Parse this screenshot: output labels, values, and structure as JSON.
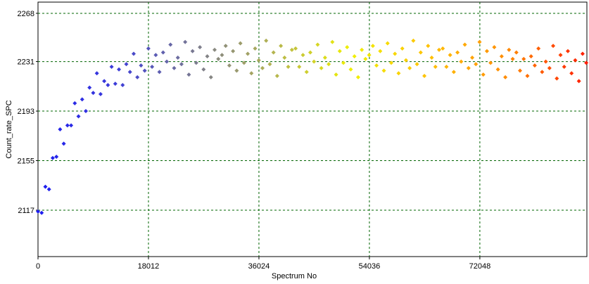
{
  "chart_data": {
    "type": "scatter",
    "x_label": "Spectrum No",
    "y_label": "Count_rate_SPC",
    "xlim": [
      0,
      89500
    ],
    "ylim": [
      2081.4,
      2276.6
    ],
    "xticks": [
      0,
      18012,
      36024,
      54036,
      72048
    ],
    "yticks": [
      2117,
      2155,
      2193,
      2231,
      2268
    ],
    "grid": true,
    "grid_color": "#006400",
    "colormap": [
      "#1c1cf0",
      "#3c3cd8",
      "#7a7a90",
      "#b4b450",
      "#f0f000",
      "#ffc000",
      "#ff8a00",
      "#ff1a00"
    ],
    "x": [
      0,
      600,
      1200,
      1800,
      2400,
      3000,
      3600,
      4200,
      4800,
      5400,
      6000,
      6600,
      7200,
      7800,
      8400,
      9000,
      9600,
      10200,
      10800,
      11400,
      12000,
      12600,
      13200,
      13800,
      14400,
      15000,
      15600,
      16200,
      16800,
      17400,
      18000,
      18600,
      19200,
      19800,
      20400,
      21000,
      21600,
      22200,
      22800,
      23400,
      24000,
      24600,
      25200,
      25800,
      26400,
      27000,
      27600,
      28200,
      28800,
      29400,
      30000,
      30600,
      31200,
      31800,
      32400,
      33000,
      33600,
      34200,
      34800,
      35400,
      36000,
      36600,
      37200,
      37800,
      38400,
      39000,
      39600,
      40200,
      40800,
      41400,
      42000,
      42600,
      43200,
      43800,
      44400,
      45000,
      45600,
      46200,
      46800,
      47400,
      48000,
      48600,
      49200,
      49800,
      50400,
      51000,
      51600,
      52200,
      52800,
      53400,
      54000,
      54600,
      55200,
      55800,
      56400,
      57000,
      57600,
      58200,
      58800,
      59400,
      60000,
      60600,
      61200,
      61800,
      62400,
      63000,
      63600,
      64200,
      64800,
      65400,
      66000,
      66600,
      67200,
      67800,
      68400,
      69000,
      69600,
      70200,
      70800,
      71400,
      72000,
      72600,
      73200,
      73800,
      74400,
      75000,
      75600,
      76200,
      76800,
      77400,
      78000,
      78600,
      79200,
      79800,
      80400,
      81000,
      81600,
      82200,
      82800,
      83400,
      84000,
      84600,
      85200,
      85800,
      86400,
      87000,
      87600,
      88200,
      88800,
      89400
    ],
    "values": [
      2116,
      2115,
      2135,
      2133,
      2157,
      2158,
      2179,
      2168,
      2182,
      2182,
      2199,
      2189,
      2202,
      2193,
      2211,
      2207,
      2222,
      2206,
      2216,
      2213,
      2227,
      2214,
      2225,
      2213,
      2229,
      2223,
      2237,
      2219,
      2228,
      2224,
      2241,
      2227,
      2236,
      2223,
      2238,
      2231,
      2244,
      2226,
      2234,
      2229,
      2246,
      2221,
      2239,
      2230,
      2242,
      2225,
      2235,
      2219,
      2240,
      2233,
      2236,
      2243,
      2228,
      2239,
      2224,
      2245,
      2230,
      2237,
      2222,
      2241,
      2232,
      2226,
      2247,
      2229,
      2238,
      2220,
      2243,
      2234,
      2227,
      2240,
      2241,
      2227,
      2236,
      2223,
      2238,
      2231,
      2244,
      2226,
      2234,
      2229,
      2246,
      2221,
      2239,
      2230,
      2242,
      2225,
      2235,
      2219,
      2240,
      2233,
      2236,
      2243,
      2228,
      2239,
      2224,
      2245,
      2230,
      2237,
      2222,
      2241,
      2232,
      2226,
      2247,
      2229,
      2238,
      2220,
      2243,
      2234,
      2227,
      2240,
      2241,
      2227,
      2236,
      2223,
      2238,
      2231,
      2244,
      2226,
      2234,
      2229,
      2246,
      2221,
      2239,
      2230,
      2242,
      2225,
      2235,
      2219,
      2240,
      2233,
      2238,
      2224,
      2233,
      2220,
      2235,
      2228,
      2241,
      2223,
      2231,
      2226,
      2243,
      2218,
      2236,
      2227,
      2239,
      2222,
      2232,
      2216,
      2237,
      2230
    ]
  }
}
